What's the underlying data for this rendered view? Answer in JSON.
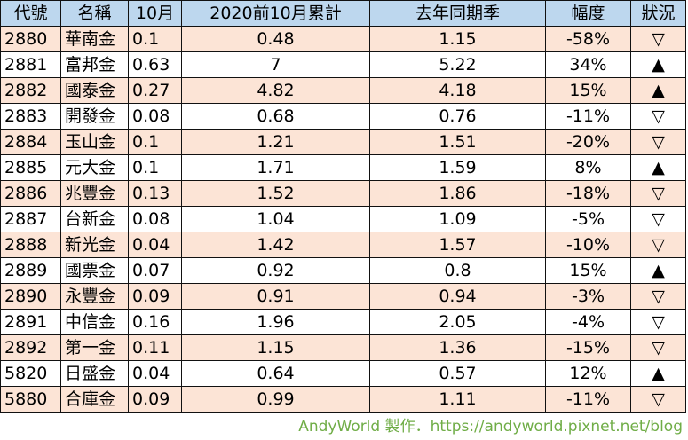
{
  "headers": {
    "code": "代號",
    "name": "名稱",
    "oct": "10月",
    "cum": "2020前10月累計",
    "last": "去年同期季",
    "chg": "幅度",
    "status": "狀況"
  },
  "rows": [
    {
      "code": "2880",
      "name": "華南金",
      "oct": "0.1",
      "cum": "0.48",
      "last": "1.15",
      "chg": "-58%",
      "status": "▽"
    },
    {
      "code": "2881",
      "name": "富邦金",
      "oct": "0.63",
      "cum": "7",
      "last": "5.22",
      "chg": "34%",
      "status": "▲"
    },
    {
      "code": "2882",
      "name": "國泰金",
      "oct": "0.27",
      "cum": "4.82",
      "last": "4.18",
      "chg": "15%",
      "status": "▲"
    },
    {
      "code": "2883",
      "name": "開發金",
      "oct": "0.08",
      "cum": "0.68",
      "last": "0.76",
      "chg": "-11%",
      "status": "▽"
    },
    {
      "code": "2884",
      "name": "玉山金",
      "oct": "0.1",
      "cum": "1.21",
      "last": "1.51",
      "chg": "-20%",
      "status": "▽"
    },
    {
      "code": "2885",
      "name": "元大金",
      "oct": "0.1",
      "cum": "1.71",
      "last": "1.59",
      "chg": "8%",
      "status": "▲"
    },
    {
      "code": "2886",
      "name": "兆豐金",
      "oct": "0.13",
      "cum": "1.52",
      "last": "1.86",
      "chg": "-18%",
      "status": "▽"
    },
    {
      "code": "2887",
      "name": "台新金",
      "oct": "0.08",
      "cum": "1.04",
      "last": "1.09",
      "chg": "-5%",
      "status": "▽"
    },
    {
      "code": "2888",
      "name": "新光金",
      "oct": "0.04",
      "cum": "1.42",
      "last": "1.57",
      "chg": "-10%",
      "status": "▽"
    },
    {
      "code": "2889",
      "name": "國票金",
      "oct": "0.07",
      "cum": "0.92",
      "last": "0.8",
      "chg": "15%",
      "status": "▲"
    },
    {
      "code": "2890",
      "name": "永豐金",
      "oct": "0.09",
      "cum": "0.91",
      "last": "0.94",
      "chg": "-3%",
      "status": "▽"
    },
    {
      "code": "2891",
      "name": "中信金",
      "oct": "0.16",
      "cum": "1.96",
      "last": "2.05",
      "chg": "-4%",
      "status": "▽"
    },
    {
      "code": "2892",
      "name": "第一金",
      "oct": "0.11",
      "cum": "1.15",
      "last": "1.36",
      "chg": "-15%",
      "status": "▽"
    },
    {
      "code": "5820",
      "name": "日盛金",
      "oct": "0.04",
      "cum": "0.64",
      "last": "0.57",
      "chg": "12%",
      "status": "▲"
    },
    {
      "code": "5880",
      "name": "合庫金",
      "oct": "0.09",
      "cum": "0.99",
      "last": "1.11",
      "chg": "-11%",
      "status": "▽"
    }
  ],
  "footer": "AndyWorld 製作．https://andyworld.pixnet.net/blog",
  "colors": {
    "header_bg": "#bdd7ee",
    "odd_row_bg": "#fce4d6",
    "even_row_bg": "#ffffff",
    "footer_text": "#70ad47"
  }
}
